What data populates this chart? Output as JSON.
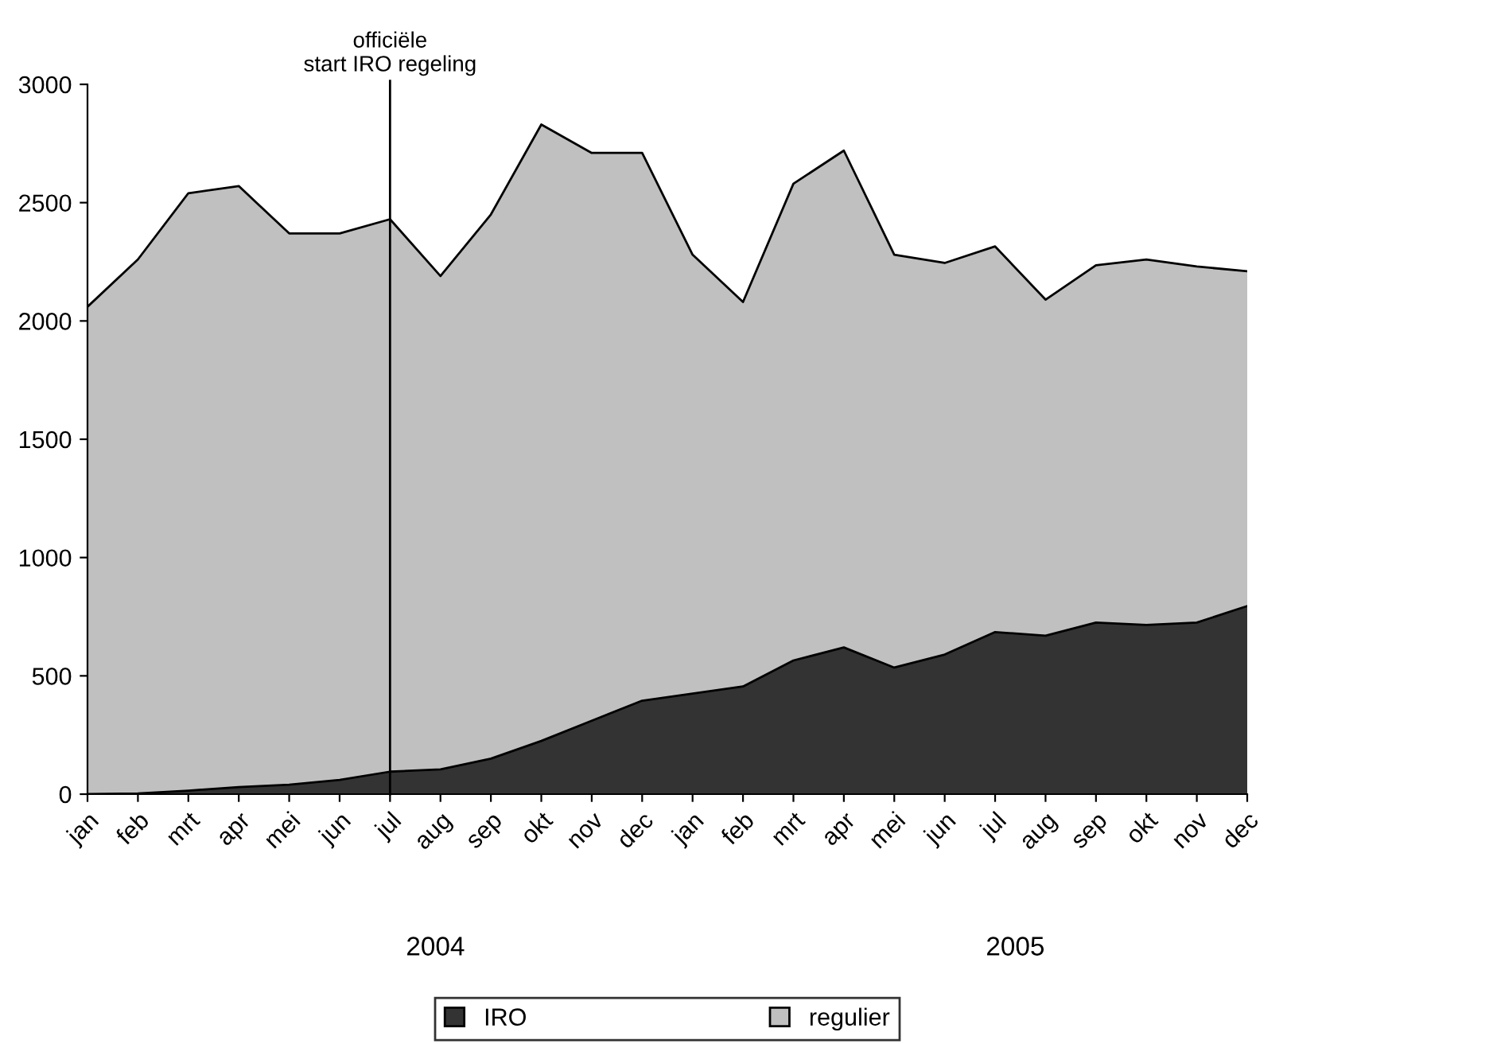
{
  "chart_data": {
    "type": "area",
    "stacked": true,
    "categories": [
      "jan",
      "feb",
      "mrt",
      "apr",
      "mei",
      "jun",
      "jul",
      "aug",
      "sep",
      "okt",
      "nov",
      "dec",
      "jan",
      "feb",
      "mrt",
      "apr",
      "mei",
      "jun",
      "jul",
      "aug",
      "sep",
      "okt",
      "nov",
      "dec"
    ],
    "series": [
      {
        "name": "IRO",
        "color": "#333333",
        "values": [
          0,
          3,
          15,
          30,
          40,
          60,
          95,
          105,
          150,
          225,
          310,
          395,
          425,
          455,
          565,
          620,
          535,
          590,
          685,
          670,
          725,
          715,
          725,
          795
        ]
      },
      {
        "name": "regulier",
        "color": "#c0c0c0",
        "values": [
          2060,
          2257,
          2525,
          2540,
          2330,
          2310,
          2335,
          2085,
          2300,
          2605,
          2400,
          2315,
          1855,
          1625,
          2015,
          2100,
          1745,
          1655,
          1630,
          1420,
          1510,
          1545,
          1505,
          1415
        ]
      }
    ],
    "ylim": [
      0,
      3000
    ],
    "yticks": [
      0,
      500,
      1000,
      1500,
      2000,
      2500,
      3000
    ],
    "ref_lines": [
      {
        "axis": "x",
        "value": "jul",
        "label": "officiële\nstart IRO regeling",
        "color": "#000000"
      }
    ],
    "annotations": [
      "2004",
      "2005"
    ],
    "grid": false,
    "legend": "bottom"
  }
}
